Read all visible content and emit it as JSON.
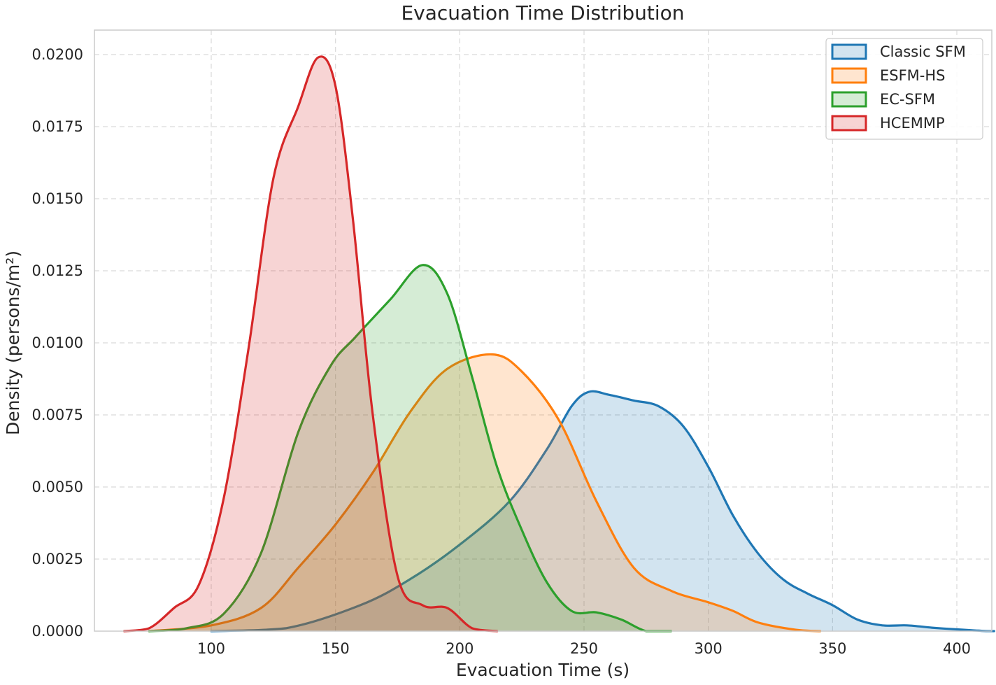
{
  "chart_data": {
    "type": "area",
    "title": "Evacuation Time Distribution",
    "xlabel": "Evacuation Time (s)",
    "ylabel": "Density (persons/m²)",
    "xlim": [
      55,
      415
    ],
    "ylim": [
      0,
      0.0208
    ],
    "xticks": [
      100,
      150,
      200,
      250,
      300,
      350,
      400
    ],
    "xtick_labels": [
      "100",
      "150",
      "200",
      "250",
      "300",
      "350",
      "400"
    ],
    "yticks": [
      0,
      0.0025,
      0.005,
      0.0075,
      0.01,
      0.0125,
      0.015,
      0.0175,
      0.02
    ],
    "ytick_labels": [
      "0.0000",
      "0.0025",
      "0.0050",
      "0.0075",
      "0.0100",
      "0.0125",
      "0.0150",
      "0.0175",
      "0.0200"
    ],
    "grid": true,
    "legend_position": "top-right",
    "series": [
      {
        "name": "Classic SFM",
        "color": "#1f77b4",
        "points": [
          [
            100,
            0
          ],
          [
            130,
            0.0001
          ],
          [
            160,
            0.0009
          ],
          [
            180,
            0.0018
          ],
          [
            200,
            0.003
          ],
          [
            220,
            0.0045
          ],
          [
            235,
            0.0063
          ],
          [
            245,
            0.0078
          ],
          [
            252,
            0.0083
          ],
          [
            260,
            0.0082
          ],
          [
            270,
            0.008
          ],
          [
            280,
            0.0078
          ],
          [
            290,
            0.0071
          ],
          [
            300,
            0.0057
          ],
          [
            310,
            0.004
          ],
          [
            320,
            0.0027
          ],
          [
            330,
            0.0018
          ],
          [
            340,
            0.0013
          ],
          [
            350,
            0.0009
          ],
          [
            360,
            0.0004
          ],
          [
            370,
            0.0002
          ],
          [
            380,
            0.0002
          ],
          [
            390,
            0.00012
          ],
          [
            400,
            6e-05
          ],
          [
            410,
            1e-05
          ],
          [
            415,
            0
          ]
        ]
      },
      {
        "name": "ESFM-HS",
        "color": "#ff7f0e",
        "points": [
          [
            75,
            0
          ],
          [
            100,
            0.0002
          ],
          [
            120,
            0.0008
          ],
          [
            135,
            0.0022
          ],
          [
            150,
            0.0037
          ],
          [
            165,
            0.0055
          ],
          [
            180,
            0.0076
          ],
          [
            195,
            0.0091
          ],
          [
            213,
            0.0096
          ],
          [
            225,
            0.009
          ],
          [
            240,
            0.0073
          ],
          [
            255,
            0.0045
          ],
          [
            270,
            0.0022
          ],
          [
            285,
            0.0014
          ],
          [
            300,
            0.001
          ],
          [
            310,
            0.0007
          ],
          [
            320,
            0.0003
          ],
          [
            335,
            5e-05
          ],
          [
            345,
            0
          ]
        ]
      },
      {
        "name": "EC-SFM",
        "color": "#2ca02c",
        "points": [
          [
            75,
            0
          ],
          [
            90,
            0.0001
          ],
          [
            105,
            0.0006
          ],
          [
            120,
            0.0027
          ],
          [
            135,
            0.0069
          ],
          [
            148,
            0.0092
          ],
          [
            158,
            0.0102
          ],
          [
            172,
            0.0115
          ],
          [
            185,
            0.0127
          ],
          [
            195,
            0.0117
          ],
          [
            205,
            0.0088
          ],
          [
            215,
            0.0057
          ],
          [
            225,
            0.0035
          ],
          [
            235,
            0.0017
          ],
          [
            245,
            0.0007
          ],
          [
            255,
            0.00065
          ],
          [
            265,
            0.0004
          ],
          [
            275,
            0
          ],
          [
            285,
            0
          ]
        ]
      },
      {
        "name": "HCEMMP",
        "color": "#d62728",
        "points": [
          [
            65,
            0
          ],
          [
            75,
            0.0001
          ],
          [
            85,
            0.0008
          ],
          [
            95,
            0.0016
          ],
          [
            105,
            0.0046
          ],
          [
            115,
            0.0098
          ],
          [
            125,
            0.0157
          ],
          [
            135,
            0.0182
          ],
          [
            143,
            0.0199
          ],
          [
            150,
            0.0189
          ],
          [
            157,
            0.0143
          ],
          [
            165,
            0.0075
          ],
          [
            175,
            0.0019
          ],
          [
            185,
            0.0009
          ],
          [
            195,
            0.0008
          ],
          [
            205,
            0.0001
          ],
          [
            215,
            0
          ]
        ]
      }
    ]
  }
}
